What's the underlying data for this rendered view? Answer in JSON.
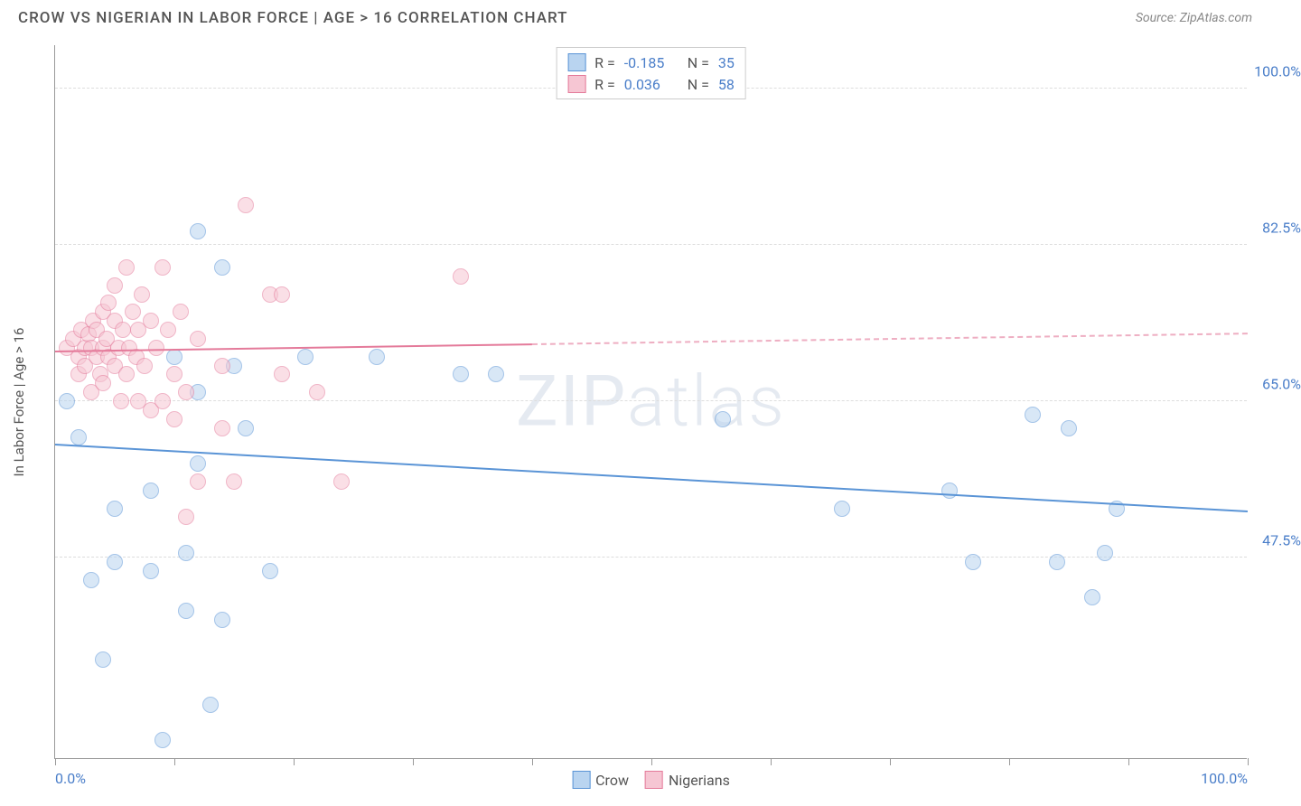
{
  "header": {
    "title": "CROW VS NIGERIAN IN LABOR FORCE | AGE > 16 CORRELATION CHART",
    "source": "Source: ZipAtlas.com"
  },
  "chart": {
    "type": "scatter",
    "ylabel": "In Labor Force | Age > 16",
    "xlim": [
      0,
      100
    ],
    "ylim": [
      25,
      105
    ],
    "background_color": "#ffffff",
    "grid_color": "#dddddd",
    "axis_color": "#999999",
    "tick_label_color": "#4a7ec9",
    "label_fontsize": 15,
    "tick_fontsize": 16,
    "marker_radius": 9,
    "marker_opacity": 0.55,
    "yticks": [
      {
        "value": 47.5,
        "label": "47.5%"
      },
      {
        "value": 65.0,
        "label": "65.0%"
      },
      {
        "value": 82.5,
        "label": "82.5%"
      },
      {
        "value": 100.0,
        "label": "100.0%"
      }
    ],
    "xticks_major": [
      {
        "value": 0,
        "label": "0.0%"
      },
      {
        "value": 100,
        "label": "100.0%"
      }
    ],
    "xticks_minor": [
      10,
      20,
      30,
      40,
      50,
      60,
      70,
      80,
      90
    ],
    "watermark": "ZIPatlas",
    "series": [
      {
        "name": "Crow",
        "fill_color": "#b9d4f0",
        "stroke_color": "#5a94d6",
        "r_value": "-0.185",
        "n_value": "35",
        "trend": {
          "x1": 0,
          "y1": 60,
          "x2": 100,
          "y2": 52.5,
          "solid_until_x": 100
        },
        "points": [
          [
            1,
            65
          ],
          [
            2,
            61
          ],
          [
            3,
            45
          ],
          [
            4,
            36
          ],
          [
            5,
            53
          ],
          [
            5,
            47
          ],
          [
            8,
            55
          ],
          [
            8,
            46
          ],
          [
            9,
            27
          ],
          [
            10,
            70
          ],
          [
            11,
            48
          ],
          [
            11,
            41.5
          ],
          [
            12,
            84
          ],
          [
            12,
            66
          ],
          [
            12,
            58
          ],
          [
            13,
            31
          ],
          [
            14,
            80
          ],
          [
            14,
            40.5
          ],
          [
            15,
            69
          ],
          [
            16,
            62
          ],
          [
            18,
            46
          ],
          [
            21,
            70
          ],
          [
            27,
            70
          ],
          [
            34,
            68
          ],
          [
            37,
            68
          ],
          [
            56,
            63
          ],
          [
            66,
            53
          ],
          [
            75,
            55
          ],
          [
            77,
            47
          ],
          [
            82,
            63.5
          ],
          [
            84,
            47
          ],
          [
            85,
            62
          ],
          [
            87,
            43
          ],
          [
            88,
            48
          ],
          [
            89,
            53
          ]
        ]
      },
      {
        "name": "Nigerians",
        "fill_color": "#f6c6d3",
        "stroke_color": "#e47a9a",
        "r_value": "0.036",
        "n_value": "58",
        "trend": {
          "x1": 0,
          "y1": 70.5,
          "x2": 100,
          "y2": 72.5,
          "solid_until_x": 40
        },
        "points": [
          [
            1,
            71
          ],
          [
            1.5,
            72
          ],
          [
            2,
            70
          ],
          [
            2,
            68
          ],
          [
            2.2,
            73
          ],
          [
            2.5,
            71
          ],
          [
            2.5,
            69
          ],
          [
            2.8,
            72.5
          ],
          [
            3,
            66
          ],
          [
            3,
            71
          ],
          [
            3.2,
            74
          ],
          [
            3.5,
            70
          ],
          [
            3.5,
            73
          ],
          [
            3.8,
            68
          ],
          [
            4,
            75
          ],
          [
            4,
            71
          ],
          [
            4,
            67
          ],
          [
            4.3,
            72
          ],
          [
            4.5,
            76
          ],
          [
            4.5,
            70
          ],
          [
            5,
            69
          ],
          [
            5,
            74
          ],
          [
            5,
            78
          ],
          [
            5.3,
            71
          ],
          [
            5.5,
            65
          ],
          [
            5.7,
            73
          ],
          [
            6,
            80
          ],
          [
            6,
            68
          ],
          [
            6.2,
            71
          ],
          [
            6.5,
            75
          ],
          [
            6.8,
            70
          ],
          [
            7,
            73
          ],
          [
            7,
            65
          ],
          [
            7.3,
            77
          ],
          [
            7.5,
            69
          ],
          [
            8,
            74
          ],
          [
            8,
            64
          ],
          [
            8.5,
            71
          ],
          [
            9,
            80
          ],
          [
            9,
            65
          ],
          [
            9.5,
            73
          ],
          [
            10,
            68
          ],
          [
            10,
            63
          ],
          [
            10.5,
            75
          ],
          [
            11,
            52
          ],
          [
            11,
            66
          ],
          [
            12,
            56
          ],
          [
            12,
            72
          ],
          [
            14,
            69
          ],
          [
            14,
            62
          ],
          [
            15,
            56
          ],
          [
            16,
            87
          ],
          [
            18,
            77
          ],
          [
            19,
            77
          ],
          [
            19,
            68
          ],
          [
            22,
            66
          ],
          [
            24,
            56
          ],
          [
            34,
            79
          ]
        ]
      }
    ],
    "legend_bottom": [
      {
        "label": "Crow",
        "fill": "#b9d4f0",
        "stroke": "#5a94d6"
      },
      {
        "label": "Nigerians",
        "fill": "#f6c6d3",
        "stroke": "#e47a9a"
      }
    ]
  }
}
